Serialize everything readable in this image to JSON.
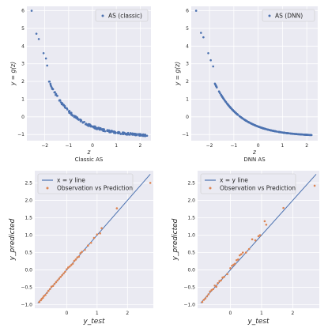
{
  "chart_data": [
    {
      "type": "scatter",
      "title": "",
      "xlabel": "z",
      "ylabel": "y = g(z)",
      "xlim": [
        -2.75,
        2.45
      ],
      "ylim": [
        -1.35,
        6.25
      ],
      "xticks": [
        -2,
        -1,
        0,
        1,
        2
      ],
      "yticks": [
        -1,
        0,
        1,
        2,
        3,
        4,
        5,
        6
      ],
      "xtick_labels": [
        "−2",
        "−1",
        "0",
        "1",
        "2"
      ],
      "ytick_labels": [
        "−1",
        "0",
        "1",
        "2",
        "3",
        "4",
        "5",
        "6"
      ],
      "grid": true,
      "legend": {
        "placement": "top-right",
        "entries": [
          {
            "label": "AS (classic)",
            "kind": "marker",
            "color": "#4c72b0"
          }
        ]
      },
      "series": [
        {
          "name": "AS (classic)",
          "color": "#4c72b0",
          "marker": "dot",
          "noise": 0.06,
          "seed": 7,
          "n": 220,
          "x_range": [
            -2.55,
            2.3
          ],
          "points": [
            [
              -2.55,
              6.0
            ],
            [
              -2.35,
              4.7
            ],
            [
              -2.25,
              4.4
            ],
            [
              -2.05,
              3.6
            ],
            [
              -1.95,
              3.3
            ],
            [
              -1.9,
              2.9
            ]
          ]
        }
      ],
      "caption": "Classic AS"
    },
    {
      "type": "scatter",
      "title": "",
      "xlabel": "z",
      "ylabel": "y = g(z)",
      "xlim": [
        -2.75,
        2.45
      ],
      "ylim": [
        -1.35,
        6.25
      ],
      "xticks": [
        -2,
        -1,
        0,
        1,
        2
      ],
      "yticks": [
        -1,
        0,
        1,
        2,
        3,
        4,
        5,
        6
      ],
      "xtick_labels": [
        "−2",
        "−1",
        "0",
        "1",
        "2"
      ],
      "ytick_labels": [
        "−1",
        "0",
        "1",
        "2",
        "3",
        "4",
        "5",
        "6"
      ],
      "grid": true,
      "legend": {
        "placement": "top-right",
        "entries": [
          {
            "label": "AS (DNN)",
            "kind": "marker",
            "color": "#4c72b0"
          }
        ]
      },
      "series": [
        {
          "name": "AS (DNN)",
          "color": "#4c72b0",
          "marker": "dot",
          "noise": 0.0,
          "seed": 3,
          "n": 320,
          "x_range": [
            -2.5,
            2.2
          ],
          "points": [
            [
              -2.55,
              6.0
            ],
            [
              -2.35,
              4.75
            ],
            [
              -2.25,
              4.5
            ],
            [
              -2.05,
              3.6
            ],
            [
              -1.95,
              3.2
            ],
            [
              -1.85,
              2.85
            ]
          ]
        }
      ],
      "caption": "DNN AS"
    },
    {
      "type": "scatter",
      "title": "",
      "xlabel": "y_test",
      "ylabel": "y_predicted",
      "xlim": [
        -1.05,
        2.85
      ],
      "ylim": [
        -1.1,
        2.85
      ],
      "xticks": [
        0,
        1,
        2
      ],
      "yticks": [
        -1.0,
        -0.5,
        0.0,
        0.5,
        1.0,
        1.5,
        2.0,
        2.5
      ],
      "xtick_labels": [
        "0",
        "1",
        "2"
      ],
      "ytick_labels": [
        "−1.0",
        "−0.5",
        "0.0",
        "0.5",
        "1.0",
        "1.5",
        "2.0",
        "2.5"
      ],
      "grid": true,
      "legend": {
        "placement": "top-left",
        "entries": [
          {
            "label": "x = y line",
            "kind": "line",
            "color": "#4c72b0"
          },
          {
            "label": "Observation vs Prediction",
            "kind": "marker",
            "color": "#dd8452"
          }
        ]
      },
      "identity_line": [
        -0.95,
        2.75
      ],
      "series": [
        {
          "name": "Observation vs Prediction",
          "color": "#dd8452",
          "marker": "dot",
          "points": [
            [
              -0.9,
              -0.92
            ],
            [
              -0.85,
              -0.87
            ],
            [
              -0.82,
              -0.83
            ],
            [
              -0.78,
              -0.8
            ],
            [
              -0.75,
              -0.75
            ],
            [
              -0.7,
              -0.72
            ],
            [
              -0.65,
              -0.66
            ],
            [
              -0.6,
              -0.6
            ],
            [
              -0.55,
              -0.55
            ],
            [
              -0.5,
              -0.48
            ],
            [
              -0.45,
              -0.46
            ],
            [
              -0.4,
              -0.4
            ],
            [
              -0.35,
              -0.35
            ],
            [
              -0.3,
              -0.3
            ],
            [
              -0.25,
              -0.25
            ],
            [
              -0.2,
              -0.2
            ],
            [
              -0.15,
              -0.15
            ],
            [
              -0.1,
              -0.1
            ],
            [
              -0.05,
              -0.05
            ],
            [
              0.0,
              0.02
            ],
            [
              0.05,
              0.07
            ],
            [
              0.1,
              0.1
            ],
            [
              0.15,
              0.14
            ],
            [
              0.2,
              0.18
            ],
            [
              0.25,
              0.26
            ],
            [
              0.3,
              0.3
            ],
            [
              0.35,
              0.36
            ],
            [
              0.4,
              0.38
            ],
            [
              0.45,
              0.48
            ],
            [
              0.5,
              0.52
            ],
            [
              0.6,
              0.58
            ],
            [
              0.7,
              0.7
            ],
            [
              0.8,
              0.78
            ],
            [
              0.9,
              0.92
            ],
            [
              1.0,
              1.02
            ],
            [
              1.1,
              1.05
            ],
            [
              1.15,
              1.2
            ],
            [
              1.65,
              1.77
            ],
            [
              2.75,
              2.5
            ]
          ]
        }
      ],
      "caption": ""
    },
    {
      "type": "scatter",
      "title": "",
      "xlabel": "y_test",
      "ylabel": "y_predicted",
      "xlim": [
        -1.05,
        2.85
      ],
      "ylim": [
        -1.1,
        2.85
      ],
      "xticks": [
        0,
        1,
        2
      ],
      "yticks": [
        -1.0,
        -0.5,
        0.0,
        0.5,
        1.0,
        1.5,
        2.0,
        2.5
      ],
      "xtick_labels": [
        "0",
        "1",
        "2"
      ],
      "ytick_labels": [
        "−1.0",
        "−0.5",
        "0.0",
        "0.5",
        "1.0",
        "1.5",
        "2.0",
        "2.5"
      ],
      "grid": true,
      "legend": {
        "placement": "top-left",
        "entries": [
          {
            "label": "x = y line",
            "kind": "line",
            "color": "#4c72b0"
          },
          {
            "label": "Observation vs Prediction",
            "kind": "marker",
            "color": "#dd8452"
          }
        ]
      },
      "identity_line": [
        -0.95,
        2.75
      ],
      "series": [
        {
          "name": "Observation vs Prediction",
          "color": "#dd8452",
          "marker": "dot",
          "points": [
            [
              -0.9,
              -0.92
            ],
            [
              -0.85,
              -0.86
            ],
            [
              -0.8,
              -0.82
            ],
            [
              -0.75,
              -0.76
            ],
            [
              -0.7,
              -0.7
            ],
            [
              -0.65,
              -0.62
            ],
            [
              -0.6,
              -0.58
            ],
            [
              -0.55,
              -0.55
            ],
            [
              -0.5,
              -0.45
            ],
            [
              -0.45,
              -0.48
            ],
            [
              -0.4,
              -0.38
            ],
            [
              -0.35,
              -0.32
            ],
            [
              -0.3,
              -0.3
            ],
            [
              -0.25,
              -0.22
            ],
            [
              -0.2,
              -0.2
            ],
            [
              -0.1,
              -0.12
            ],
            [
              0.0,
              0.05
            ],
            [
              0.05,
              0.12
            ],
            [
              0.1,
              0.15
            ],
            [
              0.15,
              0.18
            ],
            [
              0.2,
              0.28
            ],
            [
              0.25,
              0.3
            ],
            [
              0.3,
              0.42
            ],
            [
              0.35,
              0.45
            ],
            [
              0.4,
              0.5
            ],
            [
              0.5,
              0.5
            ],
            [
              0.6,
              0.6
            ],
            [
              0.7,
              0.88
            ],
            [
              0.8,
              0.85
            ],
            [
              0.9,
              0.97
            ],
            [
              0.95,
              1.0
            ],
            [
              1.1,
              1.4
            ],
            [
              1.15,
              1.3
            ],
            [
              1.7,
              1.78
            ],
            [
              2.7,
              2.42
            ]
          ]
        }
      ],
      "caption": ""
    }
  ]
}
